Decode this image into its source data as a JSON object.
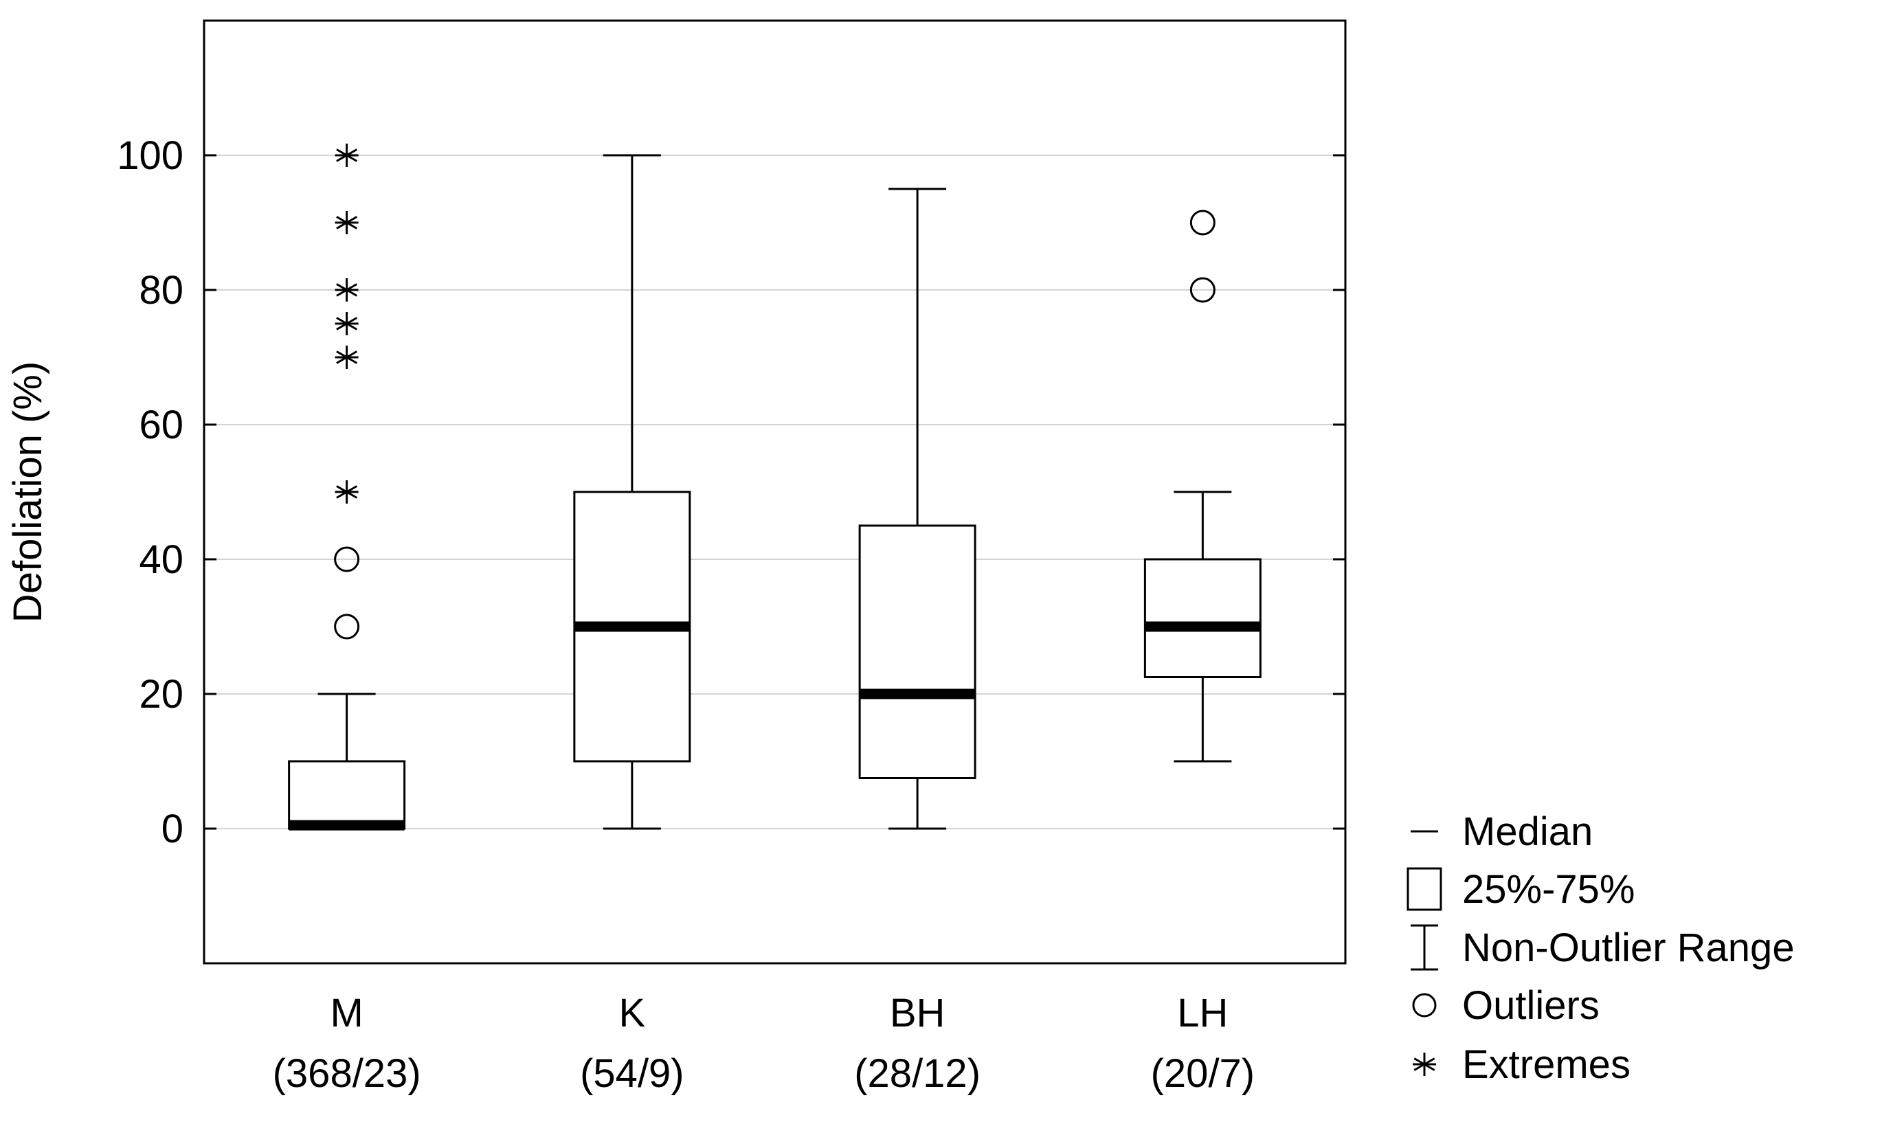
{
  "chart_data": {
    "type": "boxplot",
    "title": "",
    "xlabel": "",
    "ylabel": "Defoliation (%)",
    "ylim": [
      -20,
      120
    ],
    "yticks": [
      0,
      20,
      40,
      60,
      80,
      100
    ],
    "grid": true,
    "legend_position": "bottom-right",
    "categories": [
      {
        "name": "M",
        "sub": "(368/23)",
        "q1": 0,
        "median": 0.5,
        "q3": 10,
        "whisker_low": 0,
        "whisker_high": 20,
        "outliers": [
          30,
          40
        ],
        "extremes": [
          50,
          70,
          75,
          80,
          90,
          100
        ]
      },
      {
        "name": "K",
        "sub": "(54/9)",
        "q1": 10,
        "median": 30,
        "q3": 50,
        "whisker_low": 0,
        "whisker_high": 100,
        "outliers": [],
        "extremes": []
      },
      {
        "name": "BH",
        "sub": "(28/12)",
        "q1": 7.5,
        "median": 20,
        "q3": 45,
        "whisker_low": 0,
        "whisker_high": 95,
        "outliers": [],
        "extremes": []
      },
      {
        "name": "LH",
        "sub": "(20/7)",
        "q1": 22.5,
        "median": 30,
        "q3": 40,
        "whisker_low": 10,
        "whisker_high": 50,
        "outliers": [
          80,
          90
        ],
        "extremes": []
      }
    ],
    "legend": [
      {
        "key": "median",
        "label": "Median"
      },
      {
        "key": "box",
        "label": "25%-75%"
      },
      {
        "key": "range",
        "label": "Non-Outlier Range"
      },
      {
        "key": "outlier",
        "label": "Outliers"
      },
      {
        "key": "extreme",
        "label": "Extremes"
      }
    ]
  }
}
